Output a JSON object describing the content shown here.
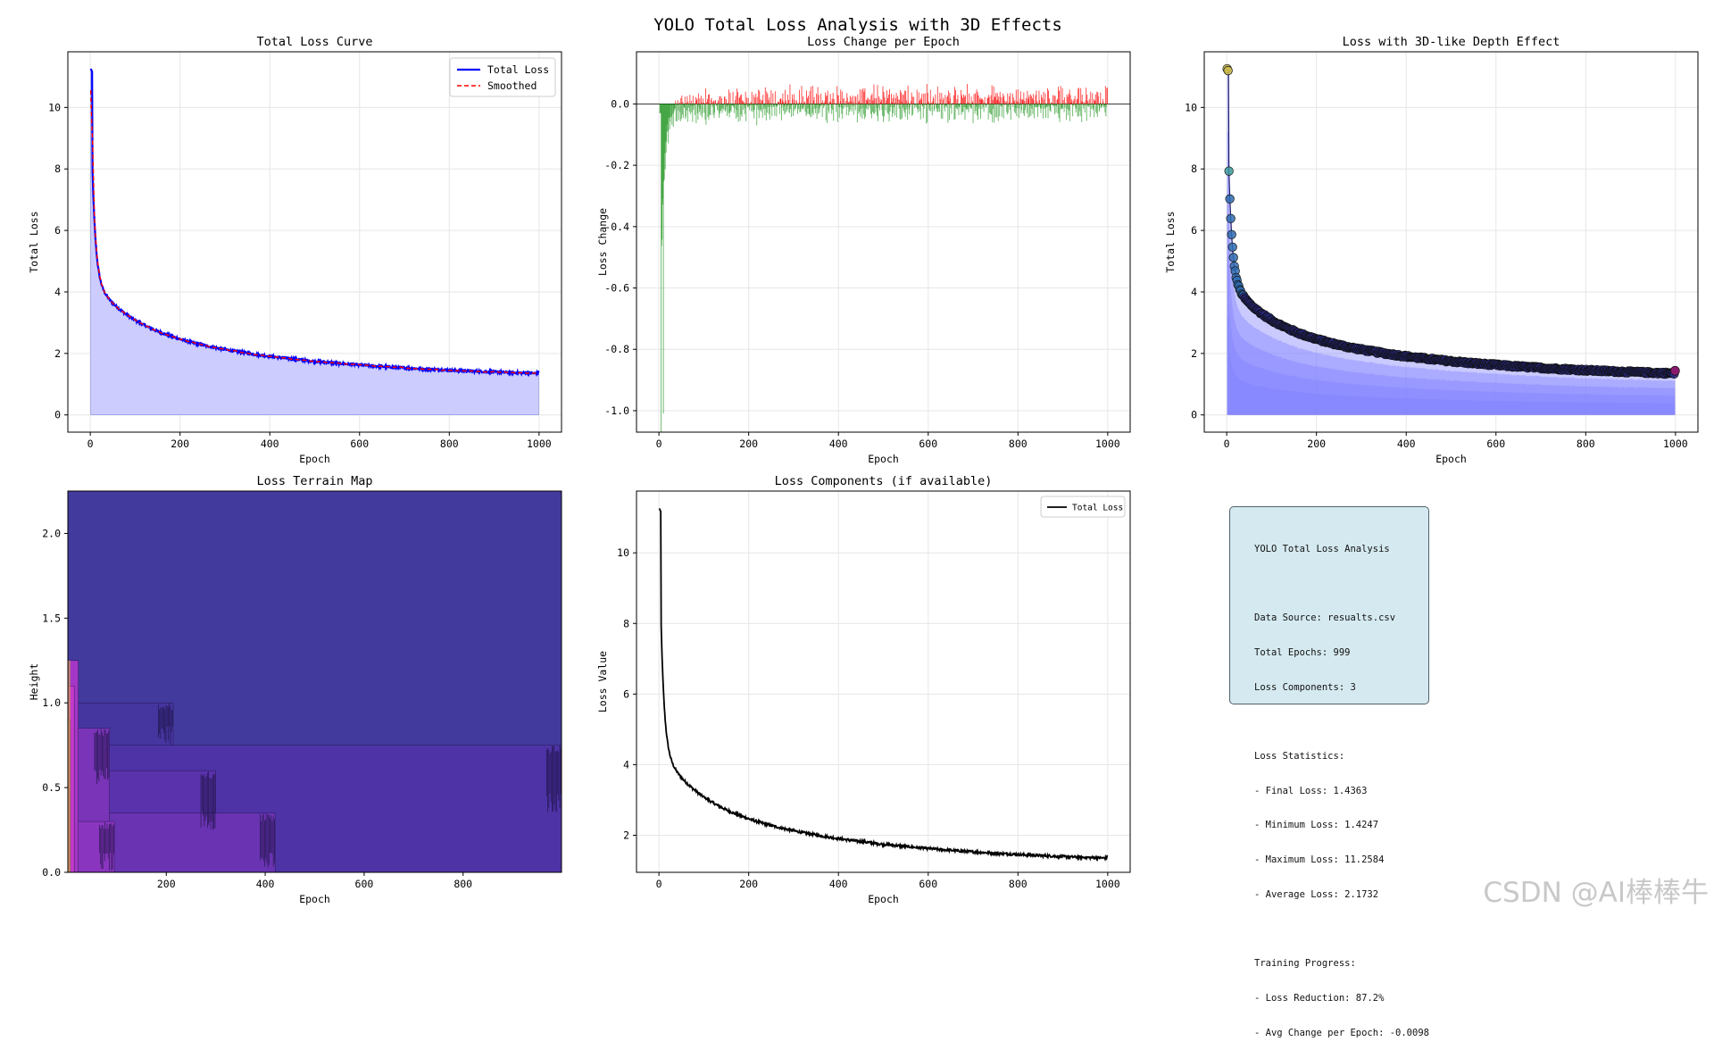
{
  "figure_title": "YOLO Total Loss Analysis with 3D Effects",
  "colors": {
    "total_loss": "#0000ff",
    "smoothed": "#ff0000",
    "fill": "#ccccff",
    "positive_change": "#ff0000",
    "negative_change": "#2e9b2e",
    "depth_fill": "#8080ff",
    "terrain_top": "#433a9e",
    "terrain_mid": "#6132b0",
    "terrain_low": "#9d36c7",
    "components_line": "#000000",
    "stats_bg": "#d5eaf0"
  },
  "loss_params": {
    "epochs": 999,
    "initial": 11.2584,
    "final": 1.4363,
    "minimum": 1.4247,
    "average": 2.1732
  },
  "chart_data": [
    {
      "id": "total-loss-curve",
      "type": "line",
      "title": "Total Loss Curve",
      "xlabel": "Epoch",
      "ylabel": "Total Loss",
      "xlim": [
        -50,
        1050
      ],
      "ylim": [
        -0.56,
        11.81
      ],
      "xticks": [
        "0",
        "200",
        "400",
        "600",
        "800",
        "1000"
      ],
      "yticks": [
        "0",
        "2",
        "4",
        "6",
        "8",
        "10"
      ],
      "legend": [
        "Total Loss",
        "Smoothed"
      ],
      "legend_position": "top-right",
      "grid": true
    },
    {
      "id": "loss-change",
      "type": "bar",
      "title": "Loss Change per Epoch",
      "xlabel": "Epoch",
      "ylabel": "Loss Change",
      "xlim": [
        -50,
        1050
      ],
      "ylim": [
        -1.07,
        0.17
      ],
      "xticks": [
        "0",
        "200",
        "400",
        "600",
        "800",
        "1000"
      ],
      "yticks": [
        "0.0",
        "-0.2",
        "-0.4",
        "-0.6",
        "-0.8",
        "-1.0"
      ],
      "min_change": -1.01,
      "grid": true
    },
    {
      "id": "depth-effect",
      "type": "scatter",
      "title": "Loss with 3D-like Depth Effect",
      "xlabel": "Epoch",
      "ylabel": "Total Loss",
      "xlim": [
        -50,
        1050
      ],
      "ylim": [
        -0.56,
        11.81
      ],
      "xticks": [
        "0",
        "200",
        "400",
        "600",
        "800",
        "1000"
      ],
      "yticks": [
        "0",
        "2",
        "4",
        "6",
        "8",
        "10"
      ],
      "grid": true
    },
    {
      "id": "terrain-map",
      "type": "area",
      "title": "Loss Terrain Map",
      "xlabel": "Epoch",
      "ylabel": "Height",
      "xlim": [
        1,
        999
      ],
      "ylim": [
        0,
        2.25
      ],
      "xticks": [
        "200",
        "400",
        "600",
        "800"
      ],
      "yticks": [
        "0.0",
        "0.5",
        "1.0",
        "1.5",
        "2.0"
      ],
      "levels": [
        {
          "end": 999,
          "height": 2.25,
          "color": "#433a9e"
        },
        {
          "end": 214,
          "height": 1.0,
          "color": "#45359f"
        },
        {
          "end": 999,
          "height": 0.75,
          "color": "#4e33a6"
        },
        {
          "end": 300,
          "height": 0.6,
          "color": "#5a32ab"
        },
        {
          "end": 420,
          "height": 0.35,
          "color": "#6a33b2"
        },
        {
          "end": 85,
          "height": 0.85,
          "color": "#7a34b8"
        },
        {
          "end": 95,
          "height": 0.3,
          "color": "#8a35bf"
        },
        {
          "end": 22,
          "height": 1.25,
          "color": "#a437c6"
        },
        {
          "end": 14,
          "height": 1.1,
          "color": "#c43acb"
        },
        {
          "end": 6,
          "height": 0.9,
          "color": "#d65ea0"
        }
      ],
      "grid": false
    },
    {
      "id": "loss-components",
      "type": "line",
      "title": "Loss Components (if available)",
      "xlabel": "Epoch",
      "ylabel": "Loss Value",
      "xlim": [
        -50,
        1050
      ],
      "ylim": [
        0.95,
        11.75
      ],
      "xticks": [
        "0",
        "200",
        "400",
        "600",
        "800",
        "1000"
      ],
      "yticks": [
        "2",
        "4",
        "6",
        "8",
        "10"
      ],
      "legend": [
        "Total Loss"
      ],
      "legend_position": "top-right",
      "grid": true
    }
  ],
  "stats": {
    "title": "YOLO Total Loss Analysis",
    "data_source": "Data Source: resualts.csv",
    "total_epochs": "Total Epochs: 999",
    "loss_components": "Loss Components: 3",
    "stats_header": "Loss Statistics:",
    "final_loss": "- Final Loss: 1.4363",
    "minimum_loss": "- Minimum Loss: 1.4247",
    "maximum_loss": "- Maximum Loss: 11.2584",
    "average_loss": "- Average Loss: 2.1732",
    "progress_header": "Training Progress:",
    "loss_reduction": "- Loss Reduction: 87.2%",
    "avg_change": "- Avg Change per Epoch: -0.0098"
  },
  "watermark": "CSDN @AI棒棒牛"
}
